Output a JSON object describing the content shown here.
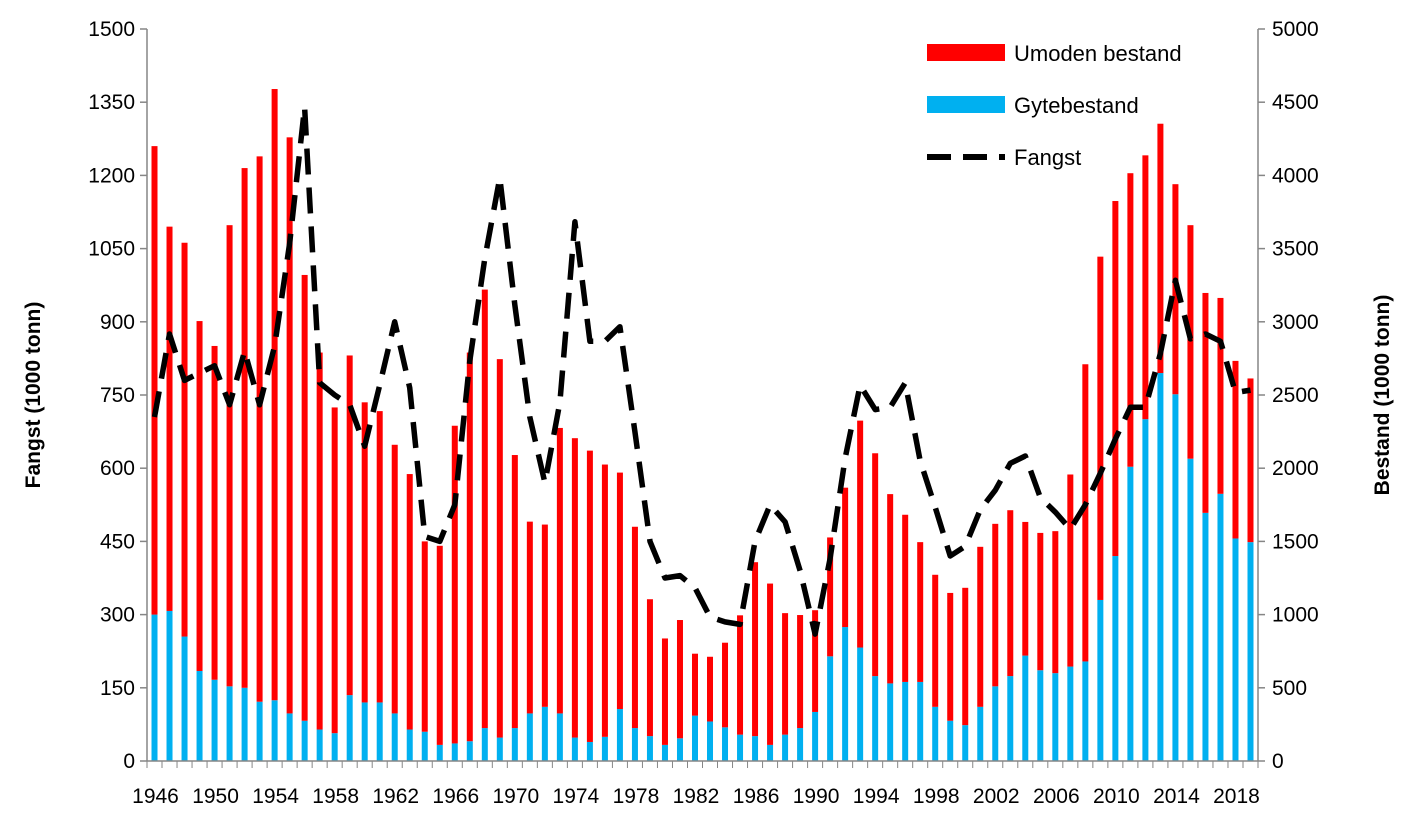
{
  "chart_data": {
    "type": "bar",
    "x": [
      1946,
      1947,
      1948,
      1949,
      1950,
      1951,
      1952,
      1953,
      1954,
      1955,
      1956,
      1957,
      1958,
      1959,
      1960,
      1961,
      1962,
      1963,
      1964,
      1965,
      1966,
      1967,
      1968,
      1969,
      1970,
      1971,
      1972,
      1973,
      1974,
      1975,
      1976,
      1977,
      1978,
      1979,
      1980,
      1981,
      1982,
      1983,
      1984,
      1985,
      1986,
      1987,
      1988,
      1989,
      1990,
      1991,
      1992,
      1993,
      1994,
      1995,
      1996,
      1997,
      1998,
      1999,
      2000,
      2001,
      2002,
      2003,
      2004,
      2005,
      2006,
      2007,
      2008,
      2009,
      2010,
      2011,
      2012,
      2013,
      2014,
      2015,
      2016,
      2017,
      2018,
      2019
    ],
    "x_tick_labels": [
      "1946",
      "1950",
      "1954",
      "1958",
      "1962",
      "1966",
      "1970",
      "1974",
      "1978",
      "1982",
      "1986",
      "1990",
      "1994",
      "1998",
      "2002",
      "2006",
      "2010",
      "2014",
      "2018"
    ],
    "stacked": true,
    "series": [
      {
        "name": "Gytebestand",
        "axis": "right",
        "color": "#00B0F0",
        "values": [
          1000,
          1025,
          850,
          615,
          555,
          510,
          500,
          405,
          415,
          325,
          275,
          215,
          190,
          450,
          400,
          400,
          325,
          215,
          200,
          110,
          120,
          135,
          225,
          160,
          225,
          325,
          370,
          325,
          160,
          130,
          165,
          355,
          225,
          170,
          110,
          155,
          310,
          270,
          230,
          180,
          170,
          110,
          180,
          225,
          335,
          715,
          915,
          775,
          580,
          530,
          540,
          540,
          370,
          275,
          245,
          370,
          510,
          580,
          720,
          620,
          600,
          645,
          680,
          1100,
          1400,
          2010,
          2335,
          2650,
          2505,
          2065,
          1695,
          1825,
          1520,
          1495
        ]
      },
      {
        "name": "Umoden bestand",
        "axis": "right",
        "color": "#FF0000",
        "values": [
          3200,
          2625,
          2690,
          2390,
          2280,
          3150,
          3550,
          3725,
          4175,
          3935,
          3045,
          2575,
          2225,
          2320,
          2050,
          1990,
          1835,
          1745,
          1300,
          1360,
          2170,
          2655,
          2995,
          2585,
          1865,
          1310,
          1245,
          1950,
          2045,
          1990,
          1860,
          1615,
          1375,
          935,
          727,
          808,
          423,
          442,
          578,
          815,
          1188,
          1102,
          830,
          772,
          695,
          812,
          952,
          1550,
          1522,
          1293,
          1142,
          955,
          902,
          873,
          938,
          1093,
          1110,
          1133,
          913,
          938,
          970,
          1312,
          2030,
          2345,
          2425,
          2005,
          1802,
          1703,
          1435,
          1595,
          1502,
          1338,
          1213,
          1118
        ]
      },
      {
        "name": "Fangst",
        "axis": "left",
        "type": "line",
        "style": "dashed",
        "color": "#000000",
        "values": [
          705,
          875,
          780,
          795,
          810,
          730,
          840,
          730,
          850,
          1060,
          1340,
          775,
          750,
          730,
          645,
          770,
          900,
          765,
          460,
          450,
          525,
          820,
          1030,
          1195,
          935,
          705,
          570,
          735,
          1105,
          860,
          860,
          890,
          675,
          450,
          375,
          380,
          355,
          295,
          285,
          280,
          450,
          525,
          490,
          390,
          260,
          415,
          620,
          770,
          720,
          725,
          775,
          615,
          520,
          420,
          440,
          515,
          555,
          610,
          625,
          540,
          510,
          475,
          525,
          590,
          660,
          725,
          725,
          835,
          985,
          865,
          875,
          860,
          755,
          760
        ]
      }
    ],
    "ylabel_left": "Fangst  (1000 tonn)",
    "ylabel_right": "Bestand (1000 tonn)",
    "ylim_left": [
      0,
      1500
    ],
    "ylim_right": [
      0,
      5000
    ],
    "yticks_left": [
      0,
      150,
      300,
      450,
      600,
      750,
      900,
      1050,
      1200,
      1350,
      1500
    ],
    "yticks_right": [
      0,
      500,
      1000,
      1500,
      2000,
      2500,
      3000,
      3500,
      4000,
      4500,
      5000
    ],
    "legend": {
      "placement": "top-right",
      "entries": [
        "Umoden bestand",
        "Gytebestand",
        "Fangst"
      ]
    },
    "grid": false
  }
}
